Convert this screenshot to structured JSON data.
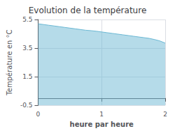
{
  "chart_data": {
    "type": "area",
    "title": "Evolution de la température",
    "xlabel": "heure par heure",
    "ylabel": "Température en °C",
    "x": [
      0.0,
      0.083,
      0.167,
      0.25,
      0.333,
      0.417,
      0.5,
      0.583,
      0.667,
      0.75,
      0.833,
      0.917,
      1.0,
      1.083,
      1.167,
      1.25,
      1.333,
      1.417,
      1.5,
      1.583,
      1.667,
      1.75,
      1.833,
      1.917,
      2.0
    ],
    "values": [
      5.2,
      5.15,
      5.1,
      5.05,
      5.0,
      4.95,
      4.9,
      4.85,
      4.8,
      4.75,
      4.72,
      4.68,
      4.63,
      4.58,
      4.53,
      4.48,
      4.43,
      4.38,
      4.33,
      4.28,
      4.23,
      4.18,
      4.1,
      4.0,
      3.85
    ],
    "color": "#6bb8d4",
    "xlim": [
      0,
      2
    ],
    "xticks": [
      0,
      1,
      2
    ],
    "ylim": [
      -0.5,
      5.5
    ],
    "yticks": [
      -0.5,
      1.5,
      3.5,
      5.5
    ],
    "grid": true
  }
}
